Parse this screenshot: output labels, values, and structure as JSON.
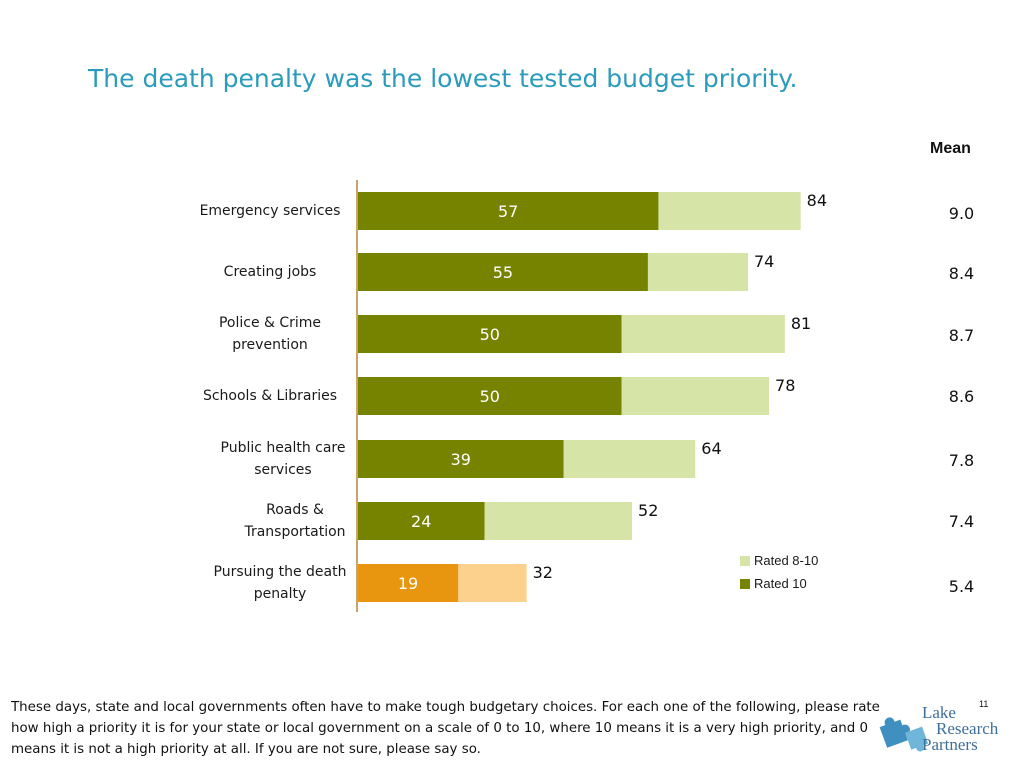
{
  "title": "The death penalty was the lowest tested budget priority.",
  "mean_header": "Mean",
  "legend": {
    "light": "Rated 8-10",
    "dark": "Rated 10"
  },
  "footnote": "These days, state and local governments often have to make tough budgetary choices.  For each one of the following, please rate how high a priority it is for your state or local government on a scale of 0 to 10, where 10 means it is a very high priority, and 0 means it is not a high priority at all. If you are not sure, please say so.",
  "page_number": "11",
  "logo": {
    "line1": "Lake",
    "line2": "Research",
    "line3": "Partners"
  },
  "colors": {
    "rated10": "#768300",
    "rated8_10": "#d6e4a8",
    "death_rated10": "#e8950f",
    "death_rated8_10": "#fcd18e",
    "axis": "#c8a36a",
    "title": "#2b9bbd"
  },
  "chart_data": {
    "type": "bar",
    "orientation": "horizontal",
    "categories": [
      "Emergency services",
      "Creating jobs",
      "Police & Crime prevention",
      "Schools & Libraries",
      "Public health care services",
      "Roads & Transportation",
      "Pursuing the death penalty"
    ],
    "series": [
      {
        "name": "Rated 10",
        "values": [
          57,
          55,
          50,
          50,
          39,
          24,
          19
        ]
      },
      {
        "name": "Rated 8-10",
        "values": [
          84,
          74,
          81,
          78,
          64,
          52,
          32
        ]
      }
    ],
    "mean": [
      "9.0",
      "8.4",
      "8.7",
      "8.6",
      "7.8",
      "7.4",
      "5.4"
    ],
    "xlim": [
      0,
      100
    ],
    "grid": false,
    "legend_position": "bottom-right"
  }
}
